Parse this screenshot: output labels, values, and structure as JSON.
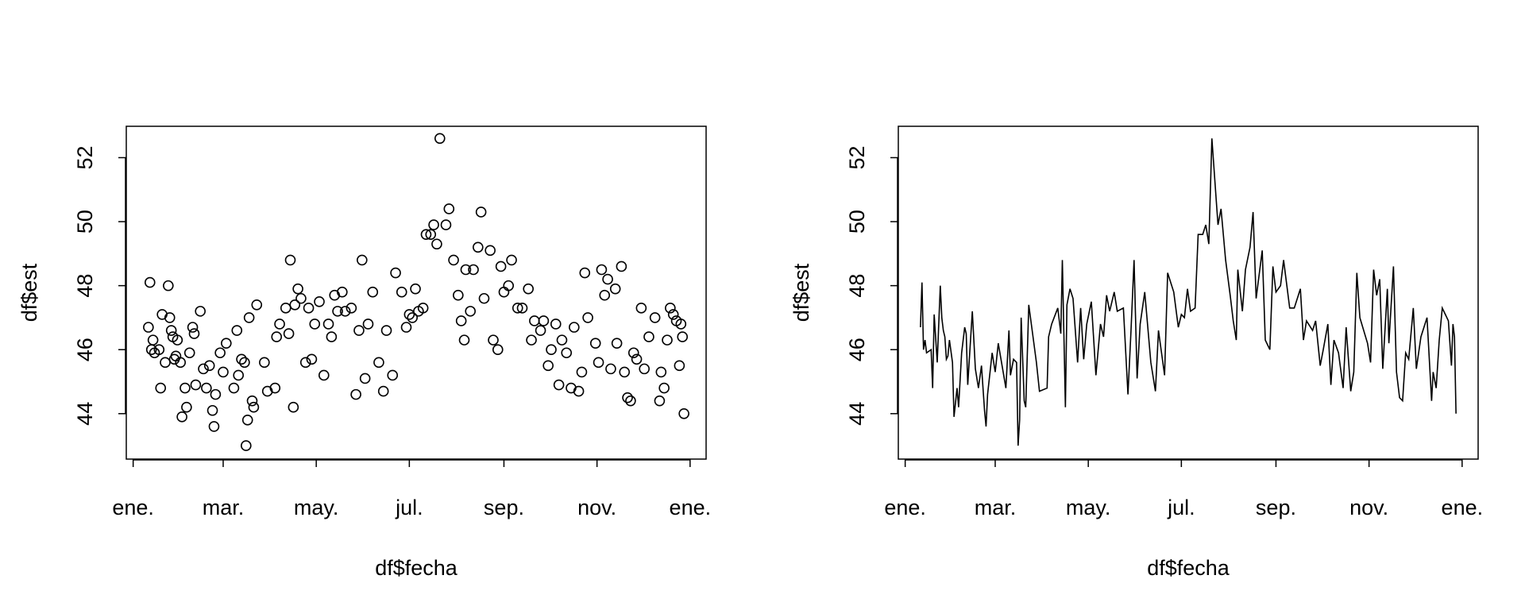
{
  "chart_data": [
    {
      "type": "scatter",
      "xlabel": "df$fecha",
      "ylabel": "df$est",
      "color": "#000000",
      "x": [
        11,
        12,
        13,
        14,
        15,
        18,
        19,
        20,
        22,
        24,
        25,
        26,
        27,
        28,
        29,
        30,
        32,
        33,
        35,
        36,
        38,
        40,
        41,
        42,
        45,
        47,
        49,
        51,
        53,
        54,
        55,
        58,
        60,
        62,
        67,
        69,
        70,
        72,
        74,
        75,
        76,
        77,
        79,
        80,
        82,
        87,
        89,
        94,
        95,
        97,
        101,
        103,
        104,
        106,
        107,
        109,
        111,
        114,
        116,
        118,
        120,
        123,
        126,
        129,
        131,
        133,
        135,
        138,
        140,
        144,
        147,
        149,
        151,
        153,
        155,
        158,
        162,
        165,
        167,
        171,
        173,
        177,
        180,
        182,
        184,
        186,
        188,
        191,
        193,
        196,
        198,
        200,
        202,
        206,
        208,
        211,
        214,
        216,
        218,
        219,
        222,
        224,
        227,
        229,
        231,
        235,
        237,
        240,
        242,
        244,
        247,
        249,
        253,
        256,
        260,
        262,
        264,
        268,
        270,
        273,
        275,
        278,
        280,
        282,
        285,
        288,
        290,
        293,
        295,
        297,
        299,
        304,
        306,
        308,
        310,
        312,
        314,
        317,
        318,
        321,
        323,
        325,
        327,
        329,
        331,
        334,
        336,
        339,
        343,
        346,
        347,
        349,
        351,
        353,
        355,
        357,
        359,
        360,
        361,
        362
      ],
      "values": [
        46.7,
        48.1,
        46.0,
        46.3,
        45.9,
        46.0,
        44.8,
        47.1,
        45.6,
        48.0,
        47.0,
        46.6,
        46.4,
        45.7,
        45.8,
        46.3,
        45.6,
        43.9,
        44.8,
        44.2,
        45.9,
        46.7,
        46.5,
        44.9,
        47.2,
        45.4,
        44.8,
        45.5,
        44.1,
        43.6,
        44.6,
        45.9,
        45.3,
        46.2,
        44.8,
        46.6,
        45.2,
        45.7,
        45.6,
        43.0,
        43.8,
        47.0,
        44.4,
        44.2,
        47.4,
        45.6,
        44.7,
        44.8,
        46.4,
        46.8,
        47.3,
        46.5,
        48.8,
        44.2,
        47.4,
        47.9,
        47.6,
        45.6,
        47.3,
        45.7,
        46.8,
        47.5,
        45.2,
        46.8,
        46.4,
        47.7,
        47.2,
        47.8,
        47.2,
        47.3,
        44.6,
        46.6,
        48.8,
        45.1,
        46.8,
        47.8,
        45.6,
        44.7,
        46.6,
        45.2,
        48.4,
        47.8,
        46.7,
        47.1,
        47.0,
        47.9,
        47.2,
        47.3,
        49.6,
        49.6,
        49.9,
        49.3,
        52.6,
        49.9,
        50.4,
        48.8,
        47.7,
        46.9,
        46.3,
        48.5,
        47.2,
        48.5,
        49.2,
        50.3,
        47.6,
        49.1,
        46.3,
        46.0,
        48.6,
        47.8,
        48.0,
        48.8,
        47.3,
        47.3,
        47.9,
        46.3,
        46.9,
        46.6,
        46.9,
        45.5,
        46.0,
        46.8,
        44.9,
        46.3,
        45.9,
        44.8,
        46.7,
        44.7,
        45.3,
        48.4,
        47.0,
        46.2,
        45.6,
        48.5,
        47.7,
        48.2,
        45.4,
        47.9,
        46.2,
        48.6,
        45.3,
        44.5,
        44.4,
        45.9,
        45.7,
        47.3,
        45.4,
        46.4,
        47.0,
        44.4,
        45.3,
        44.8,
        46.3,
        47.3,
        47.1,
        46.9,
        45.5,
        46.8,
        46.4,
        44.0
      ],
      "xlim": [
        -3.5,
        376.5
      ],
      "ylim": [
        42.58,
        52.98
      ],
      "xticks": [
        {
          "value": 1,
          "label": "ene."
        },
        {
          "value": 60,
          "label": "mar."
        },
        {
          "value": 121,
          "label": "may."
        },
        {
          "value": 182,
          "label": "jul."
        },
        {
          "value": 244,
          "label": "sep."
        },
        {
          "value": 305,
          "label": "nov."
        },
        {
          "value": 366,
          "label": "ene."
        }
      ],
      "yticks": [
        44,
        46,
        48,
        50,
        52
      ]
    },
    {
      "type": "line",
      "xlabel": "df$fecha",
      "ylabel": "df$est",
      "color": "#000000",
      "x": [
        11,
        12,
        13,
        14,
        15,
        18,
        19,
        20,
        22,
        24,
        25,
        26,
        27,
        28,
        29,
        30,
        32,
        33,
        35,
        36,
        38,
        40,
        41,
        42,
        45,
        47,
        49,
        51,
        53,
        54,
        55,
        58,
        60,
        62,
        67,
        69,
        70,
        72,
        74,
        75,
        76,
        77,
        79,
        80,
        82,
        87,
        89,
        94,
        95,
        97,
        101,
        103,
        104,
        106,
        107,
        109,
        111,
        114,
        116,
        118,
        120,
        123,
        126,
        129,
        131,
        133,
        135,
        138,
        140,
        144,
        147,
        149,
        151,
        153,
        155,
        158,
        162,
        165,
        167,
        171,
        173,
        177,
        180,
        182,
        184,
        186,
        188,
        191,
        193,
        196,
        198,
        200,
        202,
        206,
        208,
        211,
        214,
        216,
        218,
        219,
        222,
        224,
        227,
        229,
        231,
        235,
        237,
        240,
        242,
        244,
        247,
        249,
        253,
        256,
        260,
        262,
        264,
        268,
        270,
        273,
        275,
        278,
        280,
        282,
        285,
        288,
        290,
        293,
        295,
        297,
        299,
        304,
        306,
        308,
        310,
        312,
        314,
        317,
        318,
        321,
        323,
        325,
        327,
        329,
        331,
        334,
        336,
        339,
        343,
        346,
        347,
        349,
        351,
        353,
        355,
        357,
        359,
        360,
        361,
        362
      ],
      "values": [
        46.7,
        48.1,
        46.0,
        46.3,
        45.9,
        46.0,
        44.8,
        47.1,
        45.6,
        48.0,
        47.0,
        46.6,
        46.4,
        45.7,
        45.8,
        46.3,
        45.6,
        43.9,
        44.8,
        44.2,
        45.9,
        46.7,
        46.5,
        44.9,
        47.2,
        45.4,
        44.8,
        45.5,
        44.1,
        43.6,
        44.6,
        45.9,
        45.3,
        46.2,
        44.8,
        46.6,
        45.2,
        45.7,
        45.6,
        43.0,
        43.8,
        47.0,
        44.4,
        44.2,
        47.4,
        45.6,
        44.7,
        44.8,
        46.4,
        46.8,
        47.3,
        46.5,
        48.8,
        44.2,
        47.4,
        47.9,
        47.6,
        45.6,
        47.3,
        45.7,
        46.8,
        47.5,
        45.2,
        46.8,
        46.4,
        47.7,
        47.2,
        47.8,
        47.2,
        47.3,
        44.6,
        46.6,
        48.8,
        45.1,
        46.8,
        47.8,
        45.6,
        44.7,
        46.6,
        45.2,
        48.4,
        47.8,
        46.7,
        47.1,
        47.0,
        47.9,
        47.2,
        47.3,
        49.6,
        49.6,
        49.9,
        49.3,
        52.6,
        49.9,
        50.4,
        48.8,
        47.7,
        46.9,
        46.3,
        48.5,
        47.2,
        48.5,
        49.2,
        50.3,
        47.6,
        49.1,
        46.3,
        46.0,
        48.6,
        47.8,
        48.0,
        48.8,
        47.3,
        47.3,
        47.9,
        46.3,
        46.9,
        46.6,
        46.9,
        45.5,
        46.0,
        46.8,
        44.9,
        46.3,
        45.9,
        44.8,
        46.7,
        44.7,
        45.3,
        48.4,
        47.0,
        46.2,
        45.6,
        48.5,
        47.7,
        48.2,
        45.4,
        47.9,
        46.2,
        48.6,
        45.3,
        44.5,
        44.4,
        45.9,
        45.7,
        47.3,
        45.4,
        46.4,
        47.0,
        44.4,
        45.3,
        44.8,
        46.3,
        47.3,
        47.1,
        46.9,
        45.5,
        46.8,
        46.4,
        44.0
      ],
      "xlim": [
        -3.5,
        376.5
      ],
      "ylim": [
        42.58,
        52.98
      ],
      "xticks": [
        {
          "value": 1,
          "label": "ene."
        },
        {
          "value": 60,
          "label": "mar."
        },
        {
          "value": 121,
          "label": "may."
        },
        {
          "value": 182,
          "label": "jul."
        },
        {
          "value": 244,
          "label": "sep."
        },
        {
          "value": 305,
          "label": "nov."
        },
        {
          "value": 366,
          "label": "ene."
        }
      ],
      "yticks": [
        44,
        46,
        48,
        50,
        52
      ]
    }
  ]
}
